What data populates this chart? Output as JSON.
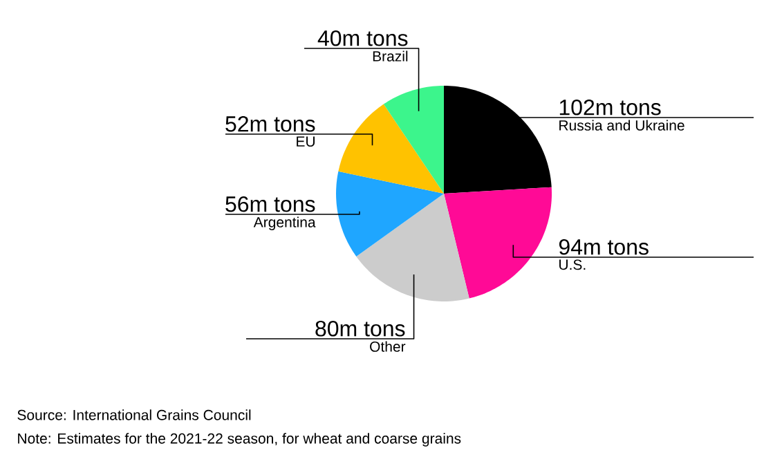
{
  "chart_data": {
    "type": "pie",
    "categories": [
      "Russia and Ukraine",
      "U.S.",
      "Other",
      "Argentina",
      "EU",
      "Brazil"
    ],
    "values": [
      102,
      94,
      80,
      56,
      52,
      40
    ],
    "value_labels": [
      "102m tons",
      "94m tons",
      "80m tons",
      "56m tons",
      "52m tons",
      "40m tons"
    ],
    "colors": [
      "#000000",
      "#ff0a96",
      "#cccccc",
      "#1fa6ff",
      "#ffc200",
      "#3cf58c"
    ],
    "annotations": [
      "Source: International Grains Council",
      "Note: Estimates for the 2021-22 season, for wheat and coarse grains"
    ]
  }
}
